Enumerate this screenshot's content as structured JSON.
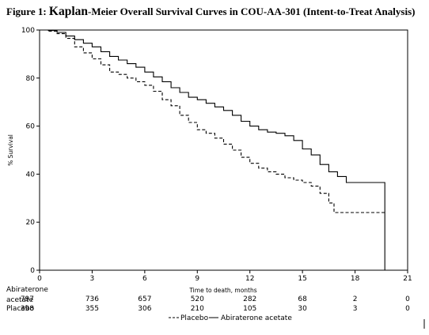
{
  "title": {
    "prefix": "Figure 1: ",
    "emphasis": "Kaplan",
    "rest": "-Meier Overall Survival Curves in COU-AA-301 (Intent-to-Treat Analysis)"
  },
  "chart_data": {
    "type": "line",
    "xlabel": "Time to death, months",
    "ylabel": "% Survival",
    "xlim": [
      0,
      21
    ],
    "ylim": [
      0,
      100
    ],
    "xticks": [
      0,
      3,
      6,
      9,
      12,
      15,
      18,
      21
    ],
    "yticks": [
      0,
      20,
      40,
      60,
      80,
      100
    ],
    "grid": false,
    "legend_position": "bottom",
    "series": [
      {
        "name": "Placebo",
        "style": "dashed",
        "color": "#000000",
        "points": [
          [
            0,
            100
          ],
          [
            0.5,
            99.5
          ],
          [
            1,
            98.5
          ],
          [
            1.5,
            96.5
          ],
          [
            2,
            93
          ],
          [
            2.5,
            90.5
          ],
          [
            3,
            88
          ],
          [
            3.5,
            85.5
          ],
          [
            4,
            82.5
          ],
          [
            4.5,
            81.5
          ],
          [
            5,
            80
          ],
          [
            5.5,
            78.5
          ],
          [
            6,
            77
          ],
          [
            6.5,
            74.5
          ],
          [
            7,
            71
          ],
          [
            7.5,
            68.5
          ],
          [
            8,
            64.5
          ],
          [
            8.5,
            61.5
          ],
          [
            9,
            58.5
          ],
          [
            9.5,
            57
          ],
          [
            10,
            55
          ],
          [
            10.5,
            52.5
          ],
          [
            11,
            50
          ],
          [
            11.5,
            47
          ],
          [
            12,
            44.5
          ],
          [
            12.5,
            42.5
          ],
          [
            13,
            41
          ],
          [
            13.5,
            40
          ],
          [
            14,
            38.5
          ],
          [
            14.5,
            37.5
          ],
          [
            15,
            36.5
          ],
          [
            15.5,
            35
          ],
          [
            16,
            32
          ],
          [
            16.5,
            28
          ],
          [
            16.8,
            24
          ],
          [
            19.7,
            24
          ]
        ]
      },
      {
        "name": "Abiraterone acetate",
        "style": "solid",
        "color": "#000000",
        "points": [
          [
            0,
            100
          ],
          [
            0.5,
            99.8
          ],
          [
            1,
            99
          ],
          [
            1.5,
            97.5
          ],
          [
            2,
            96
          ],
          [
            2.5,
            94.5
          ],
          [
            3,
            93
          ],
          [
            3.5,
            91
          ],
          [
            4,
            89
          ],
          [
            4.5,
            87.5
          ],
          [
            5,
            86
          ],
          [
            5.5,
            84.5
          ],
          [
            6,
            82.5
          ],
          [
            6.5,
            80.5
          ],
          [
            7,
            78.5
          ],
          [
            7.5,
            76
          ],
          [
            8,
            74
          ],
          [
            8.5,
            72
          ],
          [
            9,
            71
          ],
          [
            9.5,
            69.5
          ],
          [
            10,
            68
          ],
          [
            10.5,
            66.5
          ],
          [
            11,
            64.5
          ],
          [
            11.5,
            62
          ],
          [
            12,
            60
          ],
          [
            12.5,
            58.5
          ],
          [
            13,
            57.5
          ],
          [
            13.5,
            57
          ],
          [
            14,
            56
          ],
          [
            14.5,
            54
          ],
          [
            15,
            50.5
          ],
          [
            15.5,
            48
          ],
          [
            16,
            44
          ],
          [
            16.5,
            41
          ],
          [
            17,
            39
          ],
          [
            17.5,
            36.5
          ],
          [
            19.7,
            36.5
          ],
          [
            19.7,
            0
          ]
        ]
      }
    ]
  },
  "risk_table": {
    "row1_label_line1": "Abiraterone",
    "row1_label_line2": "acetate",
    "row2_label": "Placebo",
    "row1_values": [
      "797",
      "736",
      "657",
      "520",
      "282",
      "68",
      "2",
      "0"
    ],
    "row2_values": [
      "398",
      "355",
      "306",
      "210",
      "105",
      "30",
      "3",
      "0"
    ]
  },
  "legend": {
    "placebo_label": "Placebo",
    "abiraterone_label": "Abiraterone acetate"
  }
}
